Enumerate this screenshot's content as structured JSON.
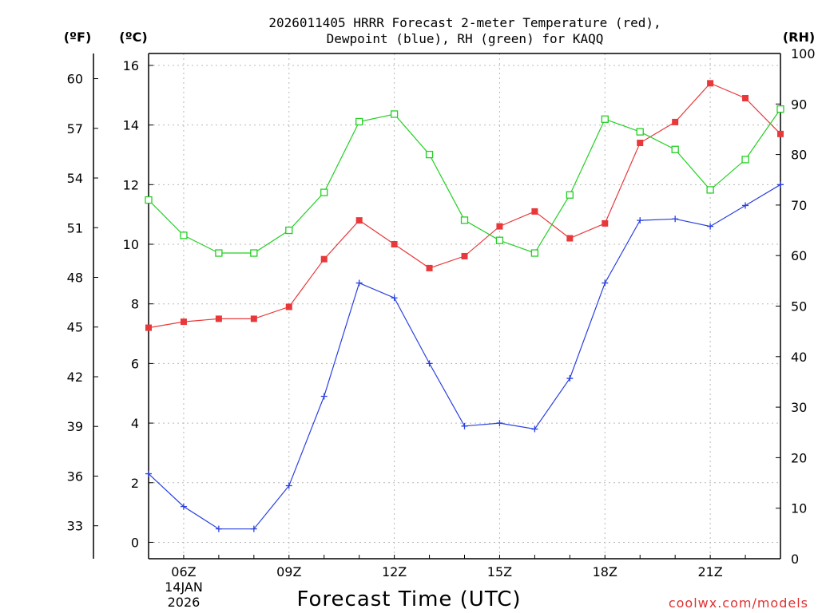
{
  "chart_data": {
    "type": "line",
    "title_line1": "2026011405 HRRR Forecast 2-meter Temperature (red),",
    "title_line2": "Dewpoint (blue), RH (green) for KAQQ",
    "xlabel": "Forecast Time (UTC)",
    "credit": "coolwx.com/models",
    "left_unit_f": "(ºF)",
    "left_unit_c": "(ºC)",
    "right_unit": "(RH)",
    "x_hours": [
      5,
      6,
      7,
      8,
      9,
      10,
      11,
      12,
      13,
      14,
      15,
      16,
      17,
      18,
      19,
      20,
      21,
      22,
      23
    ],
    "x_tick_labels": [
      {
        "hour": 6,
        "label": "06Z",
        "sub1": "14JAN",
        "sub2": "2026"
      },
      {
        "hour": 9,
        "label": "09Z"
      },
      {
        "hour": 12,
        "label": "12Z"
      },
      {
        "hour": 15,
        "label": "15Z"
      },
      {
        "hour": 18,
        "label": "18Z"
      },
      {
        "hour": 21,
        "label": "21Z"
      }
    ],
    "c_axis": {
      "min": -0.55,
      "max": 16.4,
      "ticks": [
        0,
        2,
        4,
        6,
        8,
        10,
        12,
        14,
        16
      ]
    },
    "f_axis": {
      "ticks": [
        33,
        36,
        39,
        42,
        45,
        48,
        51,
        54,
        57,
        60
      ]
    },
    "rh_axis": {
      "min": 0,
      "max": 100,
      "ticks": [
        0,
        10,
        20,
        30,
        40,
        50,
        60,
        70,
        80,
        90,
        100
      ]
    },
    "series": [
      {
        "name": "2-meter Temperature",
        "unit": "C",
        "color": "#e8383a",
        "marker": "filled-square",
        "values": [
          7.2,
          7.4,
          7.5,
          7.5,
          7.9,
          9.5,
          10.8,
          10.0,
          9.2,
          9.6,
          10.6,
          11.1,
          10.2,
          10.7,
          13.4,
          14.1,
          15.4,
          14.9,
          13.7
        ]
      },
      {
        "name": "Dewpoint",
        "unit": "C",
        "color": "#2a40e0",
        "marker": "plus",
        "values": [
          2.3,
          1.2,
          0.45,
          0.45,
          1.9,
          4.9,
          8.7,
          8.2,
          6.0,
          3.9,
          4.0,
          3.8,
          5.5,
          8.7,
          10.8,
          10.85,
          10.6,
          11.3,
          12.0
        ]
      },
      {
        "name": "RH",
        "unit": "%",
        "color": "#22d022",
        "marker": "open-square",
        "values": [
          71,
          64,
          60.5,
          60.5,
          65,
          72.5,
          86.5,
          88,
          80,
          67,
          63,
          60.5,
          72,
          87,
          84.5,
          81,
          73,
          79,
          89
        ]
      }
    ]
  }
}
